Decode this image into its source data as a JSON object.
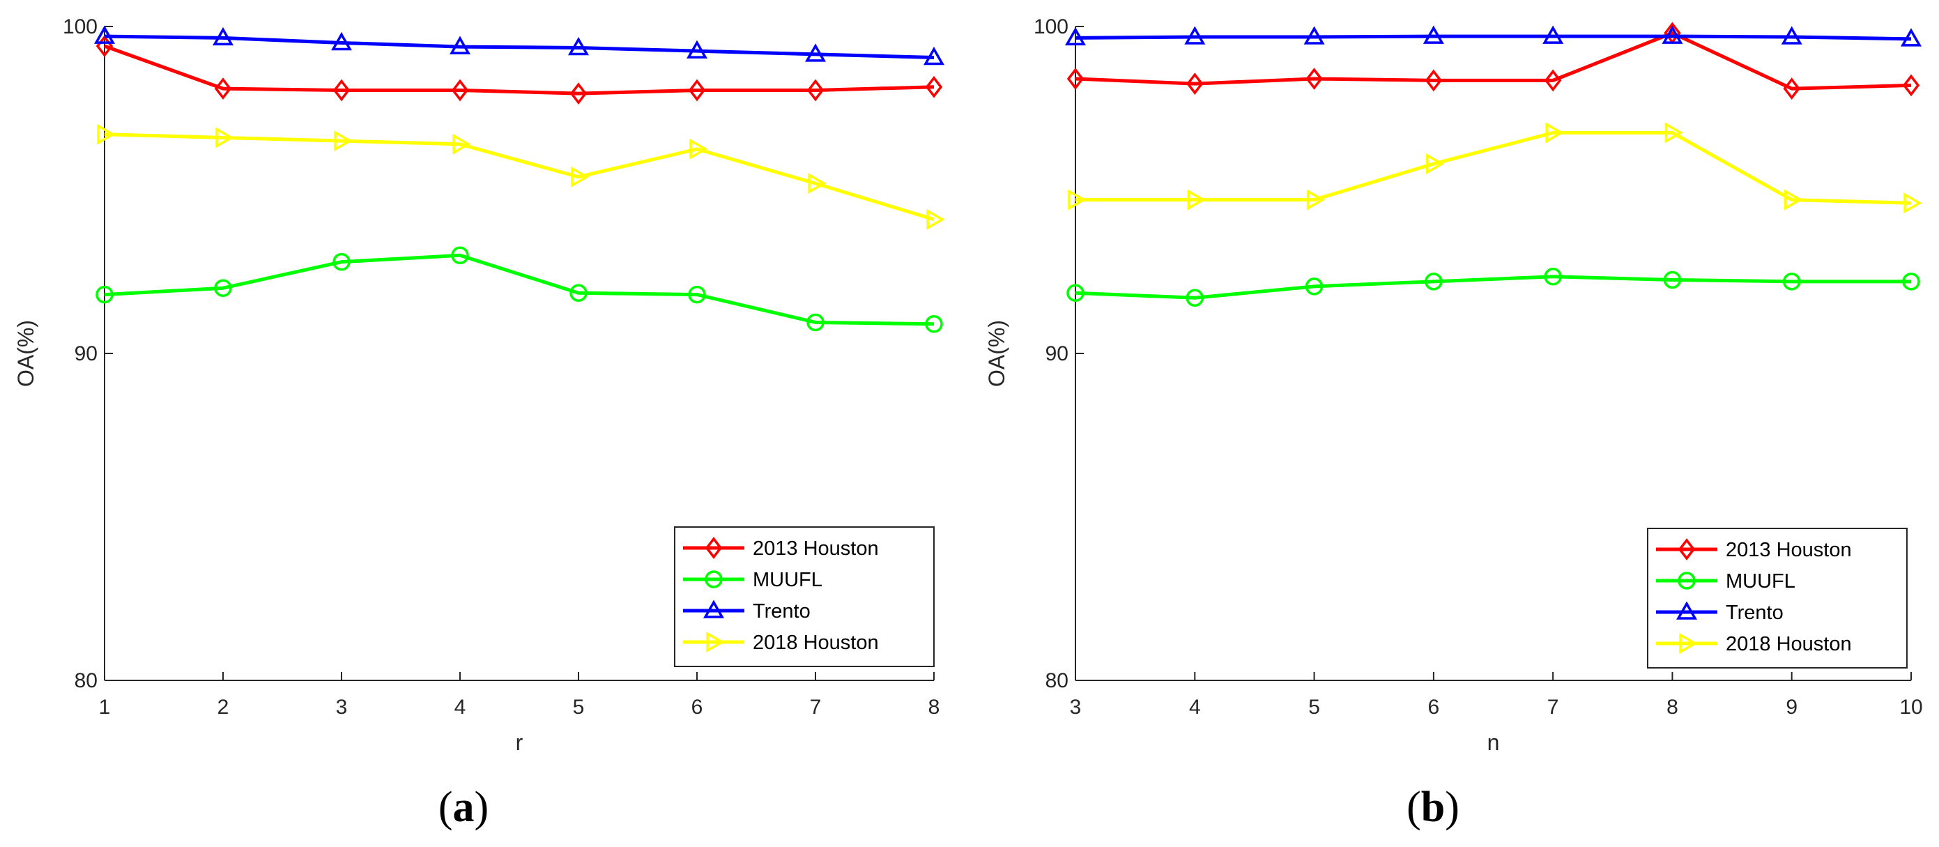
{
  "chart_data": [
    {
      "type": "line",
      "panel_label": "(a)",
      "panel_letter": "a",
      "xlabel": "r",
      "ylabel": "OA(%)",
      "x": [
        1,
        2,
        3,
        4,
        5,
        6,
        7,
        8
      ],
      "xlim": [
        1,
        8
      ],
      "ylim": [
        80,
        100
      ],
      "yticks": [
        80,
        90,
        100
      ],
      "legend_position": "bottom-right",
      "grid": false,
      "series": [
        {
          "name": "2013 Houston",
          "color": "#ff0000",
          "marker": "diamond",
          "values": [
            99.4,
            98.1,
            98.05,
            98.05,
            97.95,
            98.05,
            98.05,
            98.15
          ]
        },
        {
          "name": "MUUFL",
          "color": "#00ff00",
          "marker": "circle",
          "values": [
            91.8,
            92.0,
            92.8,
            93.0,
            91.85,
            91.8,
            90.95,
            90.9
          ]
        },
        {
          "name": "Trento",
          "color": "#0000ff",
          "marker": "triangle-up",
          "values": [
            99.7,
            99.65,
            99.5,
            99.38,
            99.35,
            99.25,
            99.15,
            99.05
          ]
        },
        {
          "name": "2018 Houston",
          "color": "#ffff00",
          "marker": "triangle-right",
          "values": [
            96.7,
            96.6,
            96.5,
            96.4,
            95.4,
            96.25,
            95.2,
            94.1
          ]
        }
      ]
    },
    {
      "type": "line",
      "panel_label": "(b)",
      "panel_letter": "b",
      "xlabel": "n",
      "ylabel": "OA(%)",
      "x": [
        3,
        4,
        5,
        6,
        7,
        8,
        9,
        10
      ],
      "xlim": [
        3,
        10
      ],
      "ylim": [
        80,
        100
      ],
      "yticks": [
        80,
        90,
        100
      ],
      "legend_position": "bottom-right",
      "grid": false,
      "series": [
        {
          "name": "2013 Houston",
          "color": "#ff0000",
          "marker": "diamond",
          "values": [
            98.4,
            98.25,
            98.4,
            98.35,
            98.35,
            99.8,
            98.1,
            98.2
          ]
        },
        {
          "name": "MUUFL",
          "color": "#00ff00",
          "marker": "circle",
          "values": [
            91.85,
            91.7,
            92.05,
            92.2,
            92.35,
            92.25,
            92.2,
            92.2
          ]
        },
        {
          "name": "Trento",
          "color": "#0000ff",
          "marker": "triangle-up",
          "values": [
            99.65,
            99.68,
            99.68,
            99.7,
            99.7,
            99.7,
            99.68,
            99.62
          ]
        },
        {
          "name": "2018 Houston",
          "color": "#ffff00",
          "marker": "triangle-right",
          "values": [
            94.7,
            94.7,
            94.7,
            95.8,
            96.75,
            96.75,
            94.7,
            94.6
          ]
        }
      ]
    }
  ]
}
